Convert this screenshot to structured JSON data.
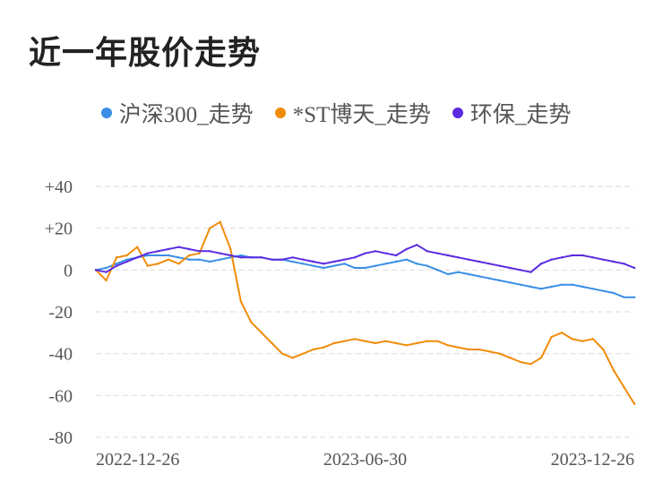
{
  "title": "近一年股价走势",
  "colors": {
    "hs300": "#3a8ee6",
    "st": "#f08c0a",
    "env": "#5b2be0",
    "grid": "#e6e6e6"
  },
  "chart_data": {
    "type": "line",
    "title": "近一年股价走势",
    "xlabel": "",
    "ylabel": "",
    "ylim": [
      -80,
      40
    ],
    "yticks": [
      40,
      20,
      0,
      -20,
      -40,
      -60,
      -80
    ],
    "ytick_labels": [
      "+40",
      "+20",
      "0",
      "-20",
      "-40",
      "-60",
      "-80"
    ],
    "x_tick_labels": [
      "2022-12-26",
      "2023-06-30",
      "2023-12-26"
    ],
    "x_ticks_index": [
      0,
      26,
      52
    ],
    "x": [
      "2022-12-26",
      "2023-01-02",
      "2023-01-09",
      "2023-01-16",
      "2023-01-23",
      "2023-01-30",
      "2023-02-06",
      "2023-02-13",
      "2023-02-20",
      "2023-02-27",
      "2023-03-06",
      "2023-03-13",
      "2023-03-20",
      "2023-03-27",
      "2023-04-03",
      "2023-04-10",
      "2023-04-17",
      "2023-04-24",
      "2023-05-01",
      "2023-05-08",
      "2023-05-15",
      "2023-05-22",
      "2023-05-29",
      "2023-06-05",
      "2023-06-12",
      "2023-06-19",
      "2023-06-30",
      "2023-07-03",
      "2023-07-10",
      "2023-07-17",
      "2023-07-24",
      "2023-07-31",
      "2023-08-07",
      "2023-08-14",
      "2023-08-21",
      "2023-08-28",
      "2023-09-04",
      "2023-09-11",
      "2023-09-18",
      "2023-09-25",
      "2023-10-02",
      "2023-10-09",
      "2023-10-16",
      "2023-10-23",
      "2023-10-30",
      "2023-11-06",
      "2023-11-13",
      "2023-11-20",
      "2023-11-27",
      "2023-12-04",
      "2023-12-11",
      "2023-12-18",
      "2023-12-26"
    ],
    "grid": true,
    "legend_position": "top-center",
    "series": [
      {
        "name": "沪深300_走势",
        "color": "#3a8ee6",
        "values": [
          0,
          1,
          3,
          5,
          6,
          7,
          7,
          7,
          6,
          5,
          5,
          4,
          5,
          6,
          7,
          6,
          6,
          5,
          5,
          4,
          3,
          2,
          1,
          2,
          3,
          1,
          1,
          2,
          3,
          4,
          5,
          3,
          2,
          0,
          -2,
          -1,
          -2,
          -3,
          -4,
          -5,
          -6,
          -7,
          -8,
          -9,
          -8,
          -7,
          -7,
          -8,
          -9,
          -10,
          -11,
          -13,
          -13
        ]
      },
      {
        "name": "*ST博天_走势",
        "color": "#f08c0a",
        "values": [
          0,
          -5,
          6,
          7,
          11,
          2,
          3,
          5,
          3,
          7,
          8,
          20,
          23,
          10,
          -15,
          -25,
          -30,
          -35,
          -40,
          -42,
          -40,
          -38,
          -37,
          -35,
          -34,
          -33,
          -34,
          -35,
          -34,
          -35,
          -36,
          -35,
          -34,
          -34,
          -36,
          -37,
          -38,
          -38,
          -39,
          -40,
          -42,
          -44,
          -45,
          -42,
          -32,
          -30,
          -33,
          -34,
          -33,
          -38,
          -48,
          -56,
          -64
        ]
      },
      {
        "name": "环保_走势",
        "color": "#5b2be0",
        "values": [
          0,
          -1,
          2,
          4,
          6,
          8,
          9,
          10,
          11,
          10,
          9,
          9,
          8,
          7,
          6,
          6,
          6,
          5,
          5,
          6,
          5,
          4,
          3,
          4,
          5,
          6,
          8,
          9,
          8,
          7,
          10,
          12,
          9,
          8,
          7,
          6,
          5,
          4,
          3,
          2,
          1,
          0,
          -1,
          3,
          5,
          6,
          7,
          7,
          6,
          5,
          4,
          3,
          1
        ]
      }
    ]
  }
}
